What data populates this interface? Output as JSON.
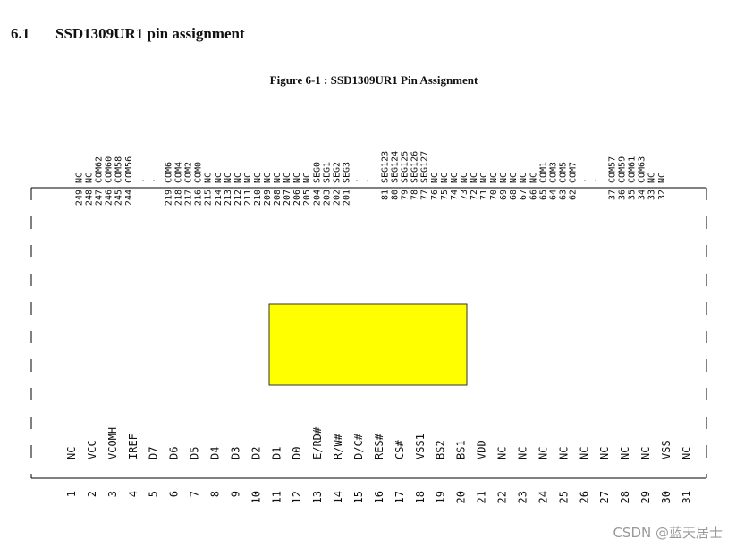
{
  "section": {
    "number": "6.1",
    "title": "SSD1309UR1 pin assignment"
  },
  "figure": {
    "caption": "Figure 6-1 : SSD1309UR1 Pin Assignment"
  },
  "ellipsis": ". .",
  "top_pins": [
    [
      [
        "249",
        "NC"
      ],
      [
        "248",
        "NC"
      ],
      [
        "247",
        "COM62"
      ],
      [
        "246",
        "COM60"
      ],
      [
        "245",
        "COM58"
      ],
      [
        "244",
        "COM56"
      ]
    ],
    [
      [
        "219",
        "COM6"
      ],
      [
        "218",
        "COM4"
      ],
      [
        "217",
        "COM2"
      ],
      [
        "216",
        "COM0"
      ],
      [
        "215",
        "NC"
      ],
      [
        "214",
        "NC"
      ],
      [
        "213",
        "NC"
      ],
      [
        "212",
        "NC"
      ],
      [
        "211",
        "NC"
      ],
      [
        "210",
        "NC"
      ],
      [
        "209",
        "NC"
      ],
      [
        "208",
        "NC"
      ],
      [
        "207",
        "NC"
      ],
      [
        "206",
        "NC"
      ],
      [
        "205",
        "NC"
      ],
      [
        "204",
        "SEG0"
      ],
      [
        "203",
        "SEG1"
      ],
      [
        "202",
        "SEG2"
      ],
      [
        "201",
        "SEG3"
      ]
    ],
    [
      [
        "81",
        "SEG123"
      ],
      [
        "80",
        "SEG124"
      ],
      [
        "79",
        "SEG125"
      ],
      [
        "78",
        "SEG126"
      ],
      [
        "77",
        "SEG127"
      ],
      [
        "76",
        "NC"
      ],
      [
        "75",
        "NC"
      ],
      [
        "74",
        "NC"
      ],
      [
        "73",
        "NC"
      ],
      [
        "72",
        "NC"
      ],
      [
        "71",
        "NC"
      ],
      [
        "70",
        "NC"
      ],
      [
        "69",
        "NC"
      ],
      [
        "68",
        "NC"
      ],
      [
        "67",
        "NC"
      ],
      [
        "66",
        "NC"
      ],
      [
        "65",
        "COM1"
      ],
      [
        "64",
        "COM3"
      ],
      [
        "63",
        "COM5"
      ],
      [
        "62",
        "COM7"
      ]
    ],
    [
      [
        "37",
        "COM57"
      ],
      [
        "36",
        "COM59"
      ],
      [
        "35",
        "COM61"
      ],
      [
        "34",
        "COM63"
      ],
      [
        "33",
        "NC"
      ],
      [
        "32",
        "NC"
      ]
    ]
  ],
  "bottom_pins": [
    [
      "1",
      "NC"
    ],
    [
      "2",
      "VCC"
    ],
    [
      "3",
      "VCOMH"
    ],
    [
      "4",
      "IREF"
    ],
    [
      "5",
      "D7"
    ],
    [
      "6",
      "D6"
    ],
    [
      "7",
      "D5"
    ],
    [
      "8",
      "D4"
    ],
    [
      "9",
      "D3"
    ],
    [
      "10",
      "D2"
    ],
    [
      "11",
      "D1"
    ],
    [
      "12",
      "D0"
    ],
    [
      "13",
      "E/RD#"
    ],
    [
      "14",
      "R/W#"
    ],
    [
      "15",
      "D/C#"
    ],
    [
      "16",
      "RES#"
    ],
    [
      "17",
      "CS#"
    ],
    [
      "18",
      "VSS1"
    ],
    [
      "19",
      "BS2"
    ],
    [
      "20",
      "BS1"
    ],
    [
      "21",
      "VDD"
    ],
    [
      "22",
      "NC"
    ],
    [
      "23",
      "NC"
    ],
    [
      "24",
      "NC"
    ],
    [
      "25",
      "NC"
    ],
    [
      "26",
      "NC"
    ],
    [
      "27",
      "NC"
    ],
    [
      "28",
      "NC"
    ],
    [
      "29",
      "NC"
    ],
    [
      "30",
      "VSS"
    ],
    [
      "31",
      "NC"
    ]
  ],
  "watermark": "CSDN @蓝天居士"
}
